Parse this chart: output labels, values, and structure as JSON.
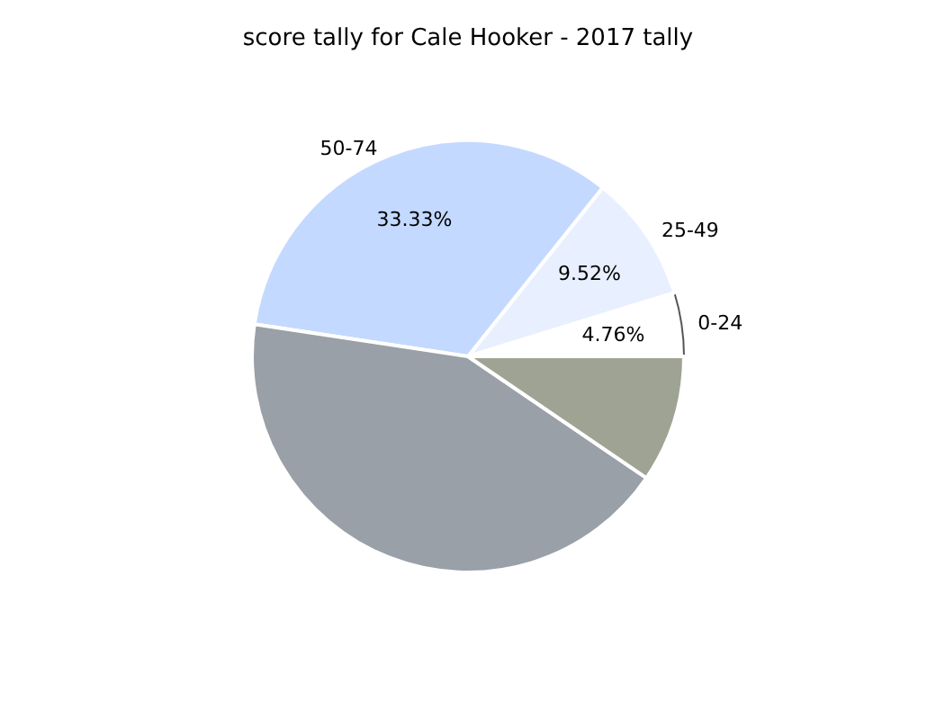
{
  "chart_data": {
    "type": "pie",
    "title": "score tally for Cale Hooker - 2017 tally",
    "categories": [
      "0-24",
      "25-49",
      "50-74",
      null,
      null
    ],
    "values": [
      4.76,
      9.52,
      33.33,
      42.86,
      9.52
    ],
    "colors": [
      "#ffffff",
      "#e8f0ff",
      "#c4d9ff",
      "#9aa0a8",
      "#9ea393"
    ],
    "value_labels": [
      "4.76%",
      "9.52%",
      "33.33%",
      null,
      null
    ],
    "legend": false
  }
}
